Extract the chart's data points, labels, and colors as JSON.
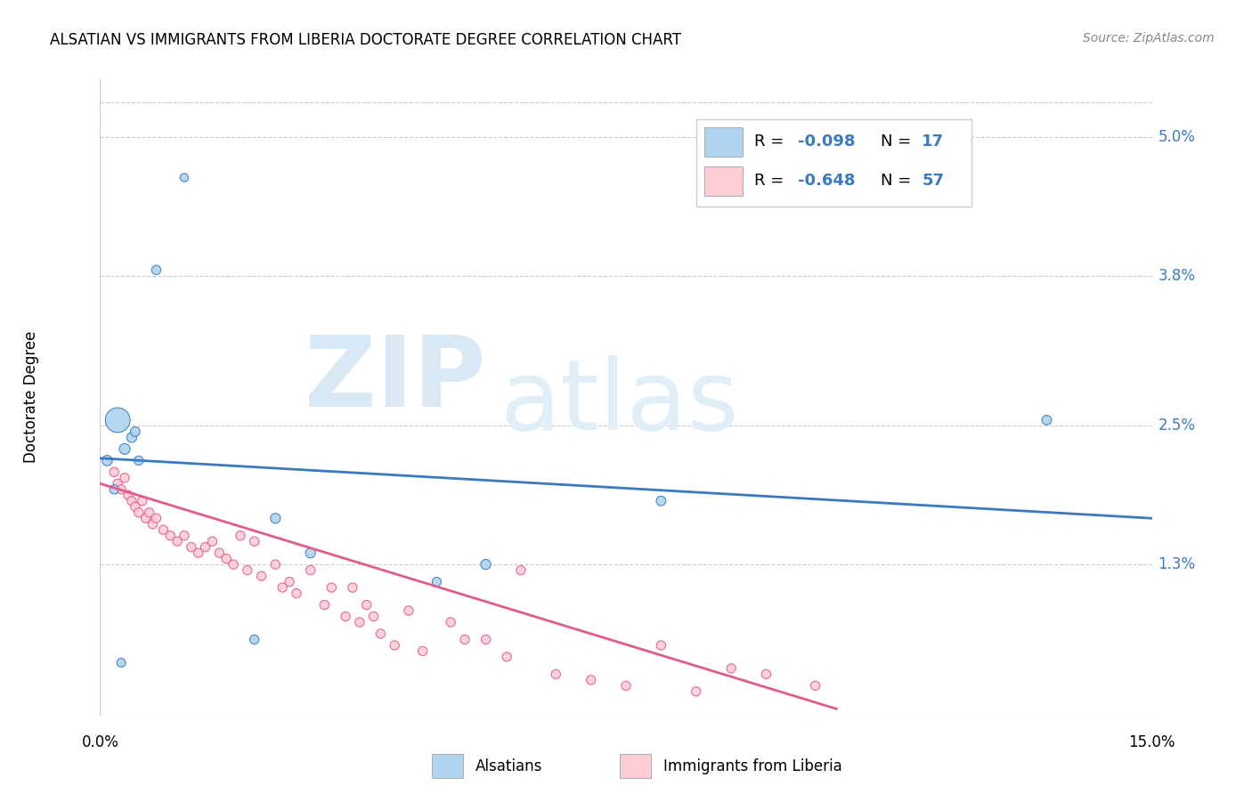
{
  "title": "ALSATIAN VS IMMIGRANTS FROM LIBERIA DOCTORATE DEGREE CORRELATION CHART",
  "source": "Source: ZipAtlas.com",
  "ylabel": "Doctorate Degree",
  "ytick_labels": [
    "5.0%",
    "3.8%",
    "2.5%",
    "1.3%"
  ],
  "ytick_values": [
    5.0,
    3.8,
    2.5,
    1.3
  ],
  "xlim": [
    0.0,
    15.0
  ],
  "ylim": [
    0.0,
    5.5
  ],
  "blue_color": "#AED4EE",
  "pink_color": "#FFCCD5",
  "blue_line_color": "#3A7ABF",
  "pink_line_color": "#E05C8A",
  "blue_scatter_x": [
    1.2,
    0.8,
    0.25,
    0.1,
    0.35,
    0.45,
    0.5,
    0.55,
    0.2,
    2.5,
    5.5,
    4.8,
    3.0,
    8.0,
    2.2,
    0.3,
    13.5
  ],
  "blue_scatter_y": [
    4.65,
    3.85,
    2.55,
    2.2,
    2.3,
    2.4,
    2.45,
    2.2,
    1.95,
    1.7,
    1.3,
    1.15,
    1.4,
    1.85,
    0.65,
    0.45,
    2.55
  ],
  "blue_scatter_sizes": [
    45,
    55,
    400,
    70,
    75,
    65,
    60,
    55,
    55,
    65,
    65,
    55,
    65,
    60,
    55,
    50,
    60
  ],
  "pink_scatter_x": [
    0.2,
    0.25,
    0.3,
    0.35,
    0.4,
    0.45,
    0.5,
    0.55,
    0.6,
    0.65,
    0.7,
    0.75,
    0.8,
    0.9,
    1.0,
    1.1,
    1.2,
    1.3,
    1.4,
    1.5,
    1.6,
    1.7,
    1.8,
    1.9,
    2.0,
    2.1,
    2.2,
    2.3,
    2.5,
    2.6,
    2.7,
    2.8,
    3.0,
    3.2,
    3.3,
    3.5,
    3.6,
    3.7,
    3.8,
    3.9,
    4.0,
    4.2,
    4.4,
    4.6,
    5.0,
    5.2,
    5.5,
    5.8,
    6.0,
    6.5,
    7.0,
    7.5,
    8.0,
    8.5,
    9.0,
    9.5,
    10.2
  ],
  "pink_scatter_y": [
    2.1,
    2.0,
    1.95,
    2.05,
    1.9,
    1.85,
    1.8,
    1.75,
    1.85,
    1.7,
    1.75,
    1.65,
    1.7,
    1.6,
    1.55,
    1.5,
    1.55,
    1.45,
    1.4,
    1.45,
    1.5,
    1.4,
    1.35,
    1.3,
    1.55,
    1.25,
    1.5,
    1.2,
    1.3,
    1.1,
    1.15,
    1.05,
    1.25,
    0.95,
    1.1,
    0.85,
    1.1,
    0.8,
    0.95,
    0.85,
    0.7,
    0.6,
    0.9,
    0.55,
    0.8,
    0.65,
    0.65,
    0.5,
    1.25,
    0.35,
    0.3,
    0.25,
    0.6,
    0.2,
    0.4,
    0.35,
    0.25
  ],
  "pink_scatter_sizes": [
    55,
    55,
    55,
    55,
    55,
    55,
    55,
    55,
    55,
    55,
    55,
    55,
    55,
    55,
    55,
    55,
    55,
    55,
    55,
    55,
    55,
    55,
    55,
    55,
    55,
    55,
    55,
    55,
    55,
    55,
    55,
    55,
    55,
    55,
    55,
    55,
    55,
    55,
    55,
    55,
    55,
    55,
    55,
    55,
    55,
    55,
    55,
    55,
    55,
    55,
    55,
    55,
    55,
    55,
    55,
    55,
    55
  ],
  "blue_trendline_x": [
    0.0,
    15.0
  ],
  "blue_trendline_y": [
    2.22,
    1.7
  ],
  "pink_trendline_x": [
    0.0,
    10.5
  ],
  "pink_trendline_y": [
    2.0,
    0.05
  ],
  "background_color": "#ffffff",
  "grid_color": "#cccccc"
}
